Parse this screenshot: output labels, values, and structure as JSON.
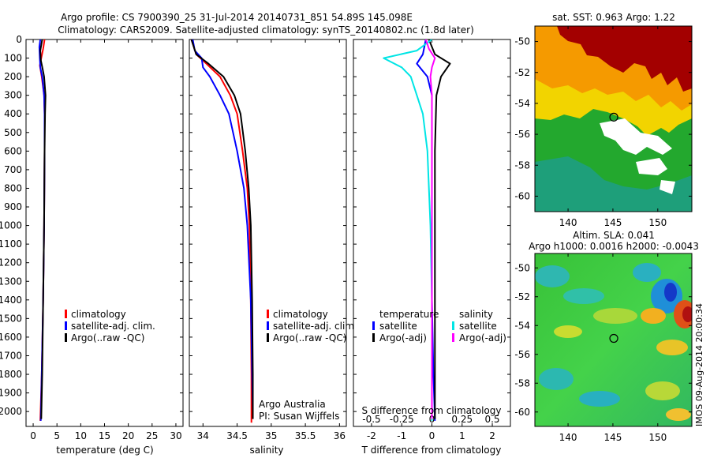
{
  "header": {
    "line1": "Argo profile: CS 7900390_25 31-Jul-2014 20140731_851 54.89S 145.098E",
    "line2": "Climatology: CARS2009. Satellite-adjusted climatology: synTS_20140802.nc (1.8d later)"
  },
  "chart_data": [
    {
      "type": "line",
      "xlabel": "temperature (deg C)",
      "x_ticks": [
        0,
        5,
        10,
        15,
        20,
        25,
        30
      ],
      "xlim": [
        -1.5,
        31.5
      ],
      "y_ticks": [
        0,
        100,
        200,
        300,
        400,
        500,
        600,
        700,
        800,
        900,
        1000,
        1100,
        1200,
        1300,
        1400,
        1500,
        1600,
        1700,
        1800,
        1900,
        2000
      ],
      "ylim": [
        0,
        2080
      ],
      "grid": false,
      "legend_position": "lower-center",
      "series": [
        {
          "name": "climatology",
          "color": "#ff0000",
          "points": [
            [
              2.4,
              0
            ],
            [
              2.1,
              50
            ],
            [
              1.7,
              100
            ],
            [
              1.4,
              140
            ],
            [
              1.8,
              200
            ],
            [
              2.3,
              300
            ],
            [
              2.4,
              400
            ],
            [
              2.4,
              600
            ],
            [
              2.3,
              1000
            ],
            [
              2.1,
              1400
            ],
            [
              1.8,
              1800
            ],
            [
              1.5,
              2050
            ]
          ]
        },
        {
          "name": "satellite-adj. clim.",
          "color": "#0000ff",
          "points": [
            [
              1.5,
              0
            ],
            [
              1.3,
              40
            ],
            [
              1.4,
              100
            ],
            [
              1.5,
              150
            ],
            [
              1.9,
              200
            ],
            [
              2.3,
              300
            ],
            [
              2.4,
              400
            ],
            [
              2.4,
              600
            ],
            [
              2.3,
              1000
            ],
            [
              2.1,
              1400
            ],
            [
              1.8,
              1800
            ],
            [
              1.6,
              2050
            ]
          ]
        },
        {
          "name": "Argo(..raw -QC)",
          "color": "#000000",
          "points": [
            [
              1.9,
              0
            ],
            [
              1.5,
              60
            ],
            [
              1.6,
              110
            ],
            [
              2.0,
              160
            ],
            [
              2.3,
              200
            ],
            [
              2.6,
              300
            ],
            [
              2.5,
              400
            ],
            [
              2.4,
              600
            ],
            [
              2.3,
              1000
            ],
            [
              2.1,
              1400
            ],
            [
              1.9,
              1800
            ],
            [
              1.7,
              2040
            ]
          ]
        }
      ]
    },
    {
      "type": "line",
      "xlabel": "salinity",
      "x_ticks": [
        34,
        34.5,
        35,
        35.5,
        36
      ],
      "xlim": [
        33.8,
        36.1
      ],
      "y_ticks": [],
      "ylim": [
        0,
        2080
      ],
      "grid": false,
      "legend_position": "lower-center",
      "annotations": [
        "Argo Australia",
        "PI: Susan Wijffels"
      ],
      "series": [
        {
          "name": "climatology",
          "color": "#ff0000",
          "points": [
            [
              33.83,
              0
            ],
            [
              33.9,
              80
            ],
            [
              34.05,
              130
            ],
            [
              34.25,
              200
            ],
            [
              34.4,
              300
            ],
            [
              34.5,
              400
            ],
            [
              34.58,
              600
            ],
            [
              34.65,
              800
            ],
            [
              34.68,
              1000
            ],
            [
              34.7,
              1400
            ],
            [
              34.71,
              1800
            ],
            [
              34.71,
              2060
            ]
          ]
        },
        {
          "name": "satellite-adj. clim.",
          "color": "#0000ff",
          "points": [
            [
              33.85,
              0
            ],
            [
              33.88,
              60
            ],
            [
              33.98,
              100
            ],
            [
              34.0,
              150
            ],
            [
              34.1,
              200
            ],
            [
              34.25,
              300
            ],
            [
              34.38,
              400
            ],
            [
              34.5,
              600
            ],
            [
              34.6,
              800
            ],
            [
              34.65,
              1000
            ],
            [
              34.7,
              1400
            ],
            [
              34.72,
              1800
            ],
            [
              34.73,
              2000
            ]
          ]
        },
        {
          "name": "Argo(..raw -QC)",
          "color": "#000000",
          "points": [
            [
              33.83,
              0
            ],
            [
              33.9,
              80
            ],
            [
              34.08,
              130
            ],
            [
              34.3,
              200
            ],
            [
              34.46,
              300
            ],
            [
              34.55,
              400
            ],
            [
              34.62,
              600
            ],
            [
              34.67,
              800
            ],
            [
              34.7,
              1000
            ],
            [
              34.72,
              1400
            ],
            [
              34.73,
              1800
            ],
            [
              34.73,
              2040
            ]
          ]
        }
      ]
    },
    {
      "type": "line",
      "xlabel": "T difference from climatology",
      "xlabel_top": "S difference from climatology",
      "x_ticks": [
        -2,
        -1,
        0,
        1,
        2
      ],
      "x_ticks_top": [
        -0.5,
        -0.25,
        0,
        0.25,
        0.5
      ],
      "xlim": [
        -2.6,
        2.6
      ],
      "y_ticks": [],
      "ylim": [
        0,
        2080
      ],
      "grid": false,
      "legend_position": "lower",
      "legend_titles": [
        "temperature",
        "salinity"
      ],
      "series": [
        {
          "name": "satellite",
          "group": "temperature",
          "color": "#0000ff",
          "points": [
            [
              -0.2,
              0
            ],
            [
              -0.3,
              80
            ],
            [
              -0.5,
              130
            ],
            [
              -0.15,
              200
            ],
            [
              0.0,
              300
            ],
            [
              0.0,
              600
            ],
            [
              0.0,
              1000
            ],
            [
              0.0,
              1400
            ],
            [
              0.05,
              1800
            ],
            [
              0.1,
              2050
            ]
          ]
        },
        {
          "name": "Argo(-adj)",
          "group": "temperature",
          "color": "#000000",
          "points": [
            [
              -0.1,
              0
            ],
            [
              0.1,
              80
            ],
            [
              0.6,
              130
            ],
            [
              0.3,
              200
            ],
            [
              0.15,
              300
            ],
            [
              0.1,
              600
            ],
            [
              0.1,
              1000
            ],
            [
              0.1,
              1400
            ],
            [
              0.1,
              1800
            ],
            [
              0.1,
              2040
            ]
          ]
        },
        {
          "name": "satellite",
          "group": "salinity",
          "color": "#00e5e5",
          "points": [
            [
              0.0,
              0
            ],
            [
              -0.5,
              60
            ],
            [
              -1.6,
              100
            ],
            [
              -1.0,
              150
            ],
            [
              -0.7,
              200
            ],
            [
              -0.5,
              300
            ],
            [
              -0.3,
              400
            ],
            [
              -0.15,
              600
            ],
            [
              -0.1,
              800
            ],
            [
              -0.05,
              1000
            ],
            [
              0.0,
              1400
            ],
            [
              0.0,
              1800
            ],
            [
              0.0,
              2050
            ]
          ]
        },
        {
          "name": "Argo(-adj)",
          "group": "salinity",
          "color": "#ff00ff",
          "points": [
            [
              -0.2,
              0
            ],
            [
              -0.1,
              50
            ],
            [
              0.1,
              100
            ],
            [
              0.0,
              150
            ],
            [
              -0.05,
              200
            ],
            [
              0.0,
              300
            ],
            [
              0.0,
              600
            ],
            [
              0.0,
              1000
            ],
            [
              0.0,
              1400
            ],
            [
              0.0,
              1800
            ],
            [
              0.0,
              2040
            ]
          ]
        }
      ]
    },
    {
      "type": "heatmap",
      "title": "sat. SST: 0.963 Argo: 1.22",
      "x_ticks": [
        140,
        145,
        150
      ],
      "y_ticks": [
        -50,
        -52,
        -54,
        -56,
        -58,
        -60
      ],
      "xlim": [
        136.3,
        153.8
      ],
      "ylim": [
        -61,
        -49
      ],
      "marker": {
        "lon": 145.098,
        "lat": -54.89
      }
    },
    {
      "type": "heatmap",
      "title": "Altim. SLA: 0.041",
      "subtitle": "Argo h1000: 0.0016 h2000: -0.0043",
      "x_ticks": [
        140,
        145,
        150
      ],
      "y_ticks": [
        -50,
        -52,
        -54,
        -56,
        -58,
        -60
      ],
      "xlim": [
        136.3,
        153.8
      ],
      "ylim": [
        -61,
        -49
      ],
      "marker": {
        "lon": 145.098,
        "lat": -54.89
      }
    }
  ],
  "footer_stamp": "IMOS 09-Aug-2014 20:00:34"
}
